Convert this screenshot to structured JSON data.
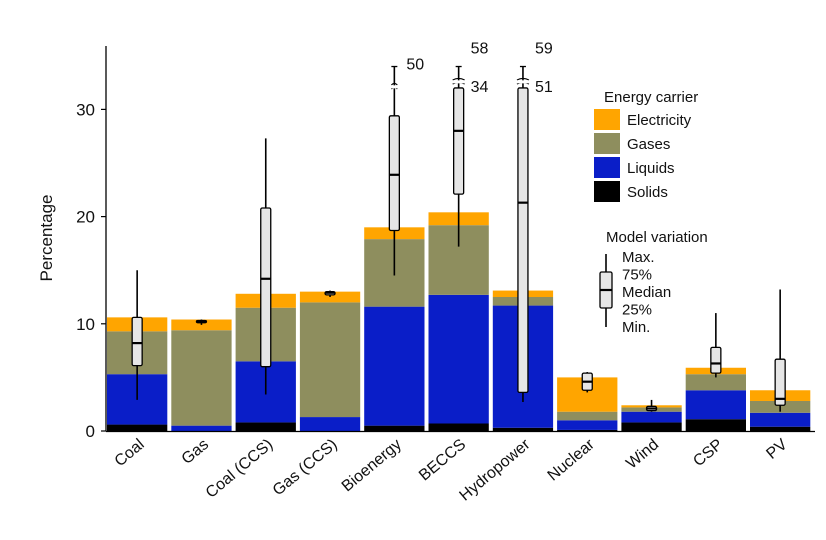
{
  "chart_data": {
    "type": "bar",
    "stacked": true,
    "ylabel": "Percentage",
    "ylim": [
      0,
      36
    ],
    "yticks": [
      0,
      10,
      20,
      30
    ],
    "categories": [
      "Coal",
      "Gas",
      "Coal (CCS)",
      "Gas (CCS)",
      "Bioenergy",
      "BECCS",
      "Hydropower",
      "Nuclear",
      "Wind",
      "CSP",
      "PV"
    ],
    "series": [
      {
        "name": "Solids",
        "color": "#000000",
        "values": [
          0.6,
          0.0,
          0.8,
          0.0,
          0.5,
          0.7,
          0.3,
          0.1,
          0.8,
          1.1,
          0.4
        ]
      },
      {
        "name": "Liquids",
        "color": "#0a1ec8",
        "values": [
          4.7,
          0.5,
          5.7,
          1.3,
          11.1,
          12.0,
          11.4,
          0.9,
          1.0,
          2.7,
          1.3
        ]
      },
      {
        "name": "Gases",
        "color": "#8e8e5e",
        "values": [
          4.0,
          8.9,
          5.0,
          10.7,
          6.3,
          6.5,
          0.8,
          0.8,
          0.4,
          1.5,
          1.1
        ]
      },
      {
        "name": "Electricity",
        "color": "#ffa500",
        "values": [
          1.3,
          1.0,
          1.3,
          1.0,
          1.1,
          1.2,
          0.6,
          3.2,
          0.2,
          0.6,
          1.0
        ]
      }
    ],
    "model_variation": [
      {
        "min": 2.9,
        "q25": 6.1,
        "median": 8.2,
        "q75": 10.6,
        "max": 15.0
      },
      {
        "min": 9.9,
        "q25": 10.1,
        "median": 10.2,
        "q75": 10.3,
        "max": 10.4
      },
      {
        "min": 3.4,
        "q25": 6.0,
        "median": 14.2,
        "q75": 20.8,
        "max": 27.3
      },
      {
        "min": 12.5,
        "q25": 12.7,
        "median": 12.9,
        "q75": 13.0,
        "max": 13.1
      },
      {
        "min": 14.5,
        "q25": 18.7,
        "median": 23.9,
        "q75": 29.4,
        "max": 50,
        "max_label": "50"
      },
      {
        "min": 17.2,
        "q25": 22.1,
        "median": 28.0,
        "q75": 34,
        "max": 58,
        "q75_label": "34",
        "max_label": "58"
      },
      {
        "min": 2.7,
        "q25": 3.6,
        "median": 21.3,
        "q75": 51,
        "max": 59,
        "q75_label": "51",
        "max_label": "59"
      },
      {
        "min": 3.6,
        "q25": 3.8,
        "median": 4.6,
        "q75": 5.4,
        "max": 5.5
      },
      {
        "min": 1.8,
        "q25": 1.9,
        "median": 2.1,
        "q75": 2.3,
        "max": 2.9
      },
      {
        "min": 5.0,
        "q25": 5.4,
        "median": 6.3,
        "q75": 7.8,
        "max": 11.0
      },
      {
        "min": 1.8,
        "q25": 2.4,
        "median": 3.0,
        "q75": 6.7,
        "max": 13.2
      }
    ],
    "legend": {
      "title": "Energy carrier",
      "placement": "top-right",
      "entries": [
        "Electricity",
        "Gases",
        "Liquids",
        "Solids"
      ]
    },
    "box_legend": {
      "title": "Model variation",
      "labels": [
        "Max.",
        "75%",
        "Median",
        "25%",
        "Min."
      ]
    }
  }
}
